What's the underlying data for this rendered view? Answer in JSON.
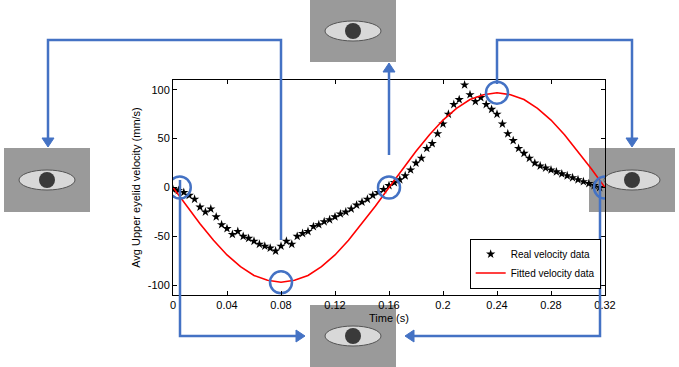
{
  "chart_data": {
    "type": "scatter",
    "x_label": "Time (s)",
    "y_label": "Avg Upper eyelid velocity (mm/s)",
    "xlim": [
      0,
      0.32
    ],
    "xticks": [
      0,
      0.04,
      0.08,
      0.12,
      0.16,
      0.2,
      0.24,
      0.28,
      0.32
    ],
    "ylim": [
      -110,
      110
    ],
    "yticks": [
      -100,
      -50,
      0,
      50,
      100
    ],
    "grid": false,
    "legend": "lower right",
    "series": [
      {
        "name": "Real velocity data",
        "type": "scatter",
        "marker": "star",
        "color": "#000000",
        "x": [
          0,
          0.004,
          0.008,
          0.012,
          0.016,
          0.02,
          0.024,
          0.028,
          0.032,
          0.036,
          0.04,
          0.044,
          0.048,
          0.052,
          0.056,
          0.06,
          0.064,
          0.068,
          0.072,
          0.076,
          0.08,
          0.084,
          0.088,
          0.092,
          0.096,
          0.1,
          0.104,
          0.108,
          0.112,
          0.116,
          0.12,
          0.124,
          0.128,
          0.132,
          0.136,
          0.14,
          0.144,
          0.148,
          0.152,
          0.156,
          0.16,
          0.164,
          0.168,
          0.172,
          0.176,
          0.18,
          0.184,
          0.188,
          0.192,
          0.196,
          0.2,
          0.204,
          0.208,
          0.212,
          0.216,
          0.22,
          0.224,
          0.228,
          0.232,
          0.236,
          0.24,
          0.244,
          0.248,
          0.252,
          0.256,
          0.26,
          0.264,
          0.268,
          0.272,
          0.276,
          0.28,
          0.284,
          0.288,
          0.292,
          0.296,
          0.3,
          0.304,
          0.308,
          0.312,
          0.316
        ],
        "values": [
          -2,
          -3,
          -5,
          -8,
          -12,
          -20,
          -25,
          -22,
          -30,
          -38,
          -42,
          -48,
          -45,
          -50,
          -52,
          -55,
          -58,
          -60,
          -62,
          -65,
          -60,
          -55,
          -58,
          -50,
          -47,
          -45,
          -40,
          -38,
          -35,
          -33,
          -30,
          -27,
          -25,
          -22,
          -18,
          -15,
          -12,
          -8,
          -5,
          -2,
          2,
          5,
          8,
          12,
          18,
          25,
          30,
          40,
          45,
          55,
          65,
          75,
          85,
          90,
          105,
          95,
          88,
          92,
          85,
          80,
          75,
          65,
          55,
          48,
          40,
          35,
          30,
          25,
          22,
          20,
          18,
          16,
          14,
          12,
          10,
          8,
          6,
          4,
          2,
          0
        ]
      },
      {
        "name": "Fitted velocity data",
        "type": "line",
        "line_style": "solid",
        "color": "#ff0000",
        "x": [
          0,
          0.01,
          0.02,
          0.03,
          0.04,
          0.05,
          0.06,
          0.07,
          0.08,
          0.09,
          0.1,
          0.11,
          0.12,
          0.13,
          0.14,
          0.15,
          0.16,
          0.17,
          0.18,
          0.19,
          0.2,
          0.21,
          0.22,
          0.23,
          0.24,
          0.25,
          0.26,
          0.27,
          0.28,
          0.29,
          0.3,
          0.31,
          0.32
        ],
        "values": [
          0,
          -19,
          -37,
          -54,
          -69,
          -81,
          -90,
          -95,
          -97,
          -95,
          -90,
          -81,
          -69,
          -54,
          -37,
          -19,
          0,
          19,
          37,
          54,
          69,
          81,
          90,
          95,
          97,
          95,
          90,
          81,
          69,
          54,
          37,
          19,
          0
        ]
      },
      {
        "type": "scatter",
        "marker": "circle-open",
        "color": "#4472c4",
        "x": [
          0.005,
          0.08,
          0.16,
          0.24,
          0.32
        ],
        "values": [
          0,
          -97,
          0,
          97,
          0
        ]
      }
    ]
  }
}
